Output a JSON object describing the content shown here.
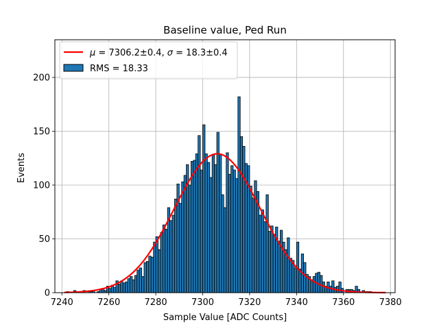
{
  "chart_data": {
    "type": "bar",
    "title": "Baseline value, Ped Run",
    "xlabel": "Sample Value [ADC Counts]",
    "ylabel": "Events",
    "xlim": [
      7237,
      7382
    ],
    "ylim": [
      0,
      235
    ],
    "xticks": [
      7240,
      7260,
      7280,
      7300,
      7320,
      7340,
      7360,
      7380
    ],
    "yticks": [
      0,
      50,
      100,
      150,
      200
    ],
    "grid": true,
    "legend_position": "top-left",
    "bin_start": 7241,
    "bin_width": 1,
    "histogram": {
      "name": "RMS = 18.33",
      "color": "#1f77b4",
      "edgecolor": "#000000",
      "values": [
        0,
        1,
        0,
        0,
        2,
        0,
        1,
        0,
        2,
        0,
        1,
        1,
        2,
        0,
        1,
        3,
        4,
        2,
        6,
        4,
        7,
        5,
        11,
        8,
        11,
        9,
        10,
        13,
        15,
        12,
        16,
        21,
        23,
        15,
        28,
        29,
        34,
        33,
        47,
        52,
        40,
        56,
        63,
        59,
        79,
        67,
        72,
        87,
        101,
        83,
        103,
        109,
        119,
        100,
        122,
        123,
        129,
        146,
        114,
        156,
        129,
        121,
        107,
        128,
        119,
        149,
        129,
        91,
        79,
        130,
        110,
        118,
        114,
        106,
        182,
        145,
        136,
        120,
        118,
        99,
        88,
        104,
        94,
        72,
        77,
        66,
        91,
        57,
        62,
        54,
        61,
        48,
        58,
        47,
        40,
        51,
        32,
        30,
        23,
        47,
        22,
        36,
        28,
        17,
        15,
        12,
        15,
        18,
        19,
        16,
        10,
        6,
        10,
        6,
        11,
        5,
        6,
        10,
        4,
        0,
        3,
        3,
        3,
        2,
        6,
        3,
        0,
        2,
        1,
        1,
        1,
        0,
        0,
        0,
        0,
        0,
        0,
        0
      ]
    },
    "fit": {
      "name": "$\\mu = 7306.2$±0.4, $\\sigma = 18.3$±0.4",
      "legend_parts": {
        "mu_symbol": "μ",
        "mu_text": " = 7306.2±0.4, ",
        "sigma_symbol": "σ",
        "sigma_text": " = 18.3±0.4"
      },
      "color": "#ff0000",
      "type": "gaussian",
      "mu": 7306.2,
      "sigma": 18.3,
      "amplitude": 129,
      "x_range": [
        7241,
        7378
      ]
    },
    "legend": {
      "fit_label": "μ = 7306.2±0.4, σ = 18.3±0.4",
      "hist_label": "RMS = 18.33"
    }
  }
}
